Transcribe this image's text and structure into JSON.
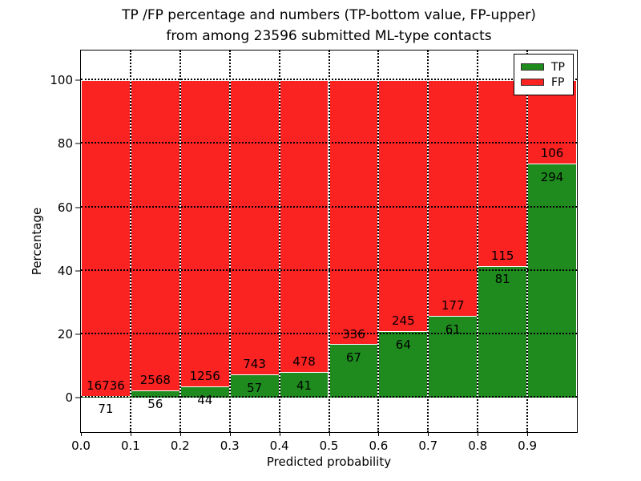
{
  "figure": {
    "title_line1": "TP /FP percentage and numbers (TP-bottom value, FP-upper)",
    "title_line2": "from among 23596 submitted ML-type contacts",
    "xlabel": "Predicted probability",
    "ylabel": "Percentage"
  },
  "legend": {
    "position": "upper right",
    "entries": [
      {
        "label": "TP",
        "color": "#1f8b1f"
      },
      {
        "label": "FP",
        "color": "#fb2222"
      }
    ]
  },
  "chart_data": {
    "type": "bar",
    "stacked": true,
    "normalized_to": 100,
    "title": "TP /FP percentage and numbers (TP-bottom value, FP-upper) from among 23596 submitted ML-type contacts",
    "total_contacts": 23596,
    "xlabel": "Predicted probability",
    "ylabel": "Percentage",
    "categories": [
      "0.0",
      "0.1",
      "0.2",
      "0.3",
      "0.4",
      "0.5",
      "0.6",
      "0.7",
      "0.8",
      "0.9"
    ],
    "bin_width": 0.1,
    "series": [
      {
        "name": "TP",
        "color": "#1f8b1f",
        "counts": [
          71,
          56,
          44,
          57,
          41,
          67,
          64,
          61,
          81,
          294
        ]
      },
      {
        "name": "FP",
        "color": "#fb2222",
        "counts": [
          16736,
          2568,
          1256,
          743,
          478,
          336,
          245,
          177,
          115,
          106
        ]
      }
    ],
    "xticks": [
      "0.0",
      "0.1",
      "0.2",
      "0.3",
      "0.4",
      "0.5",
      "0.6",
      "0.7",
      "0.8",
      "0.9"
    ],
    "yticks": [
      0,
      20,
      40,
      60,
      80,
      100
    ],
    "xlim": [
      0,
      1
    ],
    "ylim": [
      -10.8,
      109.4
    ],
    "grid": "dotted",
    "bar_edge_color": "#ffffff"
  }
}
